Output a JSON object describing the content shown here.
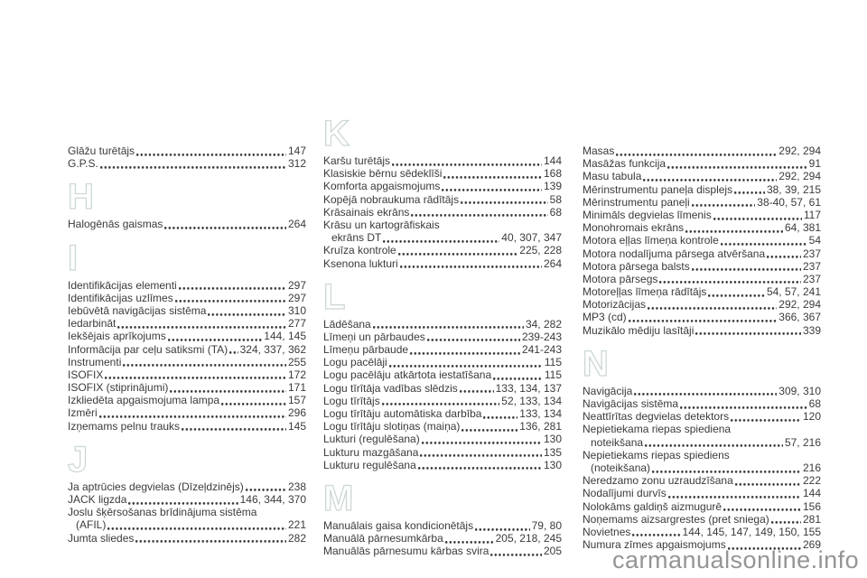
{
  "colors": {
    "background": "#ffffff",
    "text": "#3a3a3a",
    "section_letter_outline": "#ccd8d5",
    "watermark": "#959595"
  },
  "watermark": {
    "text": "carmanualsonline.info"
  },
  "index": {
    "columns": [
      {
        "blocks": [
          {
            "entries": [
              {
                "label": "Glāžu turētājs",
                "pages": "147"
              },
              {
                "label": "G.P.S.",
                "pages": "312"
              }
            ]
          },
          {
            "letter": "H"
          },
          {
            "entries": [
              {
                "label": "Halogēnās gaismas",
                "pages": "264"
              }
            ]
          },
          {
            "letter": "I"
          },
          {
            "entries": [
              {
                "label": "Identifikācijas elementi",
                "pages": "297"
              },
              {
                "label": "Identifikācijas uzlīmes",
                "pages": "297"
              },
              {
                "label": "Iebūvētā navigācijas sistēma",
                "pages": "310"
              },
              {
                "label": "Iedarbināt",
                "pages": "277"
              },
              {
                "label": "Iekšējais aprīkojums",
                "pages": "144, 145"
              },
              {
                "label": "Informācija par ceļu satiksmi (TA)",
                "pages": "324, 337, 362"
              },
              {
                "label": "Instrumenti",
                "pages": "255"
              },
              {
                "label": "ISOFIX",
                "pages": "172"
              },
              {
                "label": "ISOFIX (stiprinājumi)",
                "pages": "171"
              },
              {
                "label": "Izkliedēta apgaismojuma lampa",
                "pages": "157"
              },
              {
                "label": "Izmēri",
                "pages": "296"
              },
              {
                "label": "Izņemams pelnu trauks",
                "pages": "145"
              }
            ]
          },
          {
            "letter": "J"
          },
          {
            "entries": [
              {
                "label": "Ja aptrūcies degvielas (Dīzeļdzinējs)",
                "pages": "238"
              },
              {
                "label": "JACK ligzda",
                "pages": "146, 344, 370"
              },
              {
                "label": "Joslu šķērsošanas brīdinājuma sistēma",
                "pages": null
              },
              {
                "label": "(AFIL)",
                "pages": "221",
                "cont": true
              },
              {
                "label": "Jumta sliedes",
                "pages": "282"
              }
            ]
          }
        ]
      },
      {
        "blocks": [
          {
            "letter": "K"
          },
          {
            "entries": [
              {
                "label": "Karšu turētājs",
                "pages": "144"
              },
              {
                "label": "Klasiskie bērnu sēdeklīši",
                "pages": "168"
              },
              {
                "label": "Komforta apgaismojums",
                "pages": "139"
              },
              {
                "label": "Kopējā nobraukuma rādītājs",
                "pages": "58"
              },
              {
                "label": "Krāsainais ekrāns",
                "pages": "68"
              },
              {
                "label": "Krāsu un kartogrāfiskais",
                "pages": null
              },
              {
                "label": "ekrāns DT",
                "pages": "40, 307, 347",
                "cont": true
              },
              {
                "label": "Kruīza kontrole",
                "pages": "225, 228"
              },
              {
                "label": "Ksenona lukturi",
                "pages": "264"
              }
            ]
          },
          {
            "letter": "L"
          },
          {
            "entries": [
              {
                "label": "Lādēšana",
                "pages": "34, 282"
              },
              {
                "label": "Līmeņi un pārbaudes",
                "pages": "239-243"
              },
              {
                "label": "Līmeņu pārbaude",
                "pages": "241-243"
              },
              {
                "label": "Logu pacēlāji",
                "pages": "115"
              },
              {
                "label": "Logu pacēlāju atkārtota iestatīšana",
                "pages": "115"
              },
              {
                "label": "Logu tīrītāja vadības slēdzis",
                "pages": "133, 134, 137"
              },
              {
                "label": "Logu tīrītājs",
                "pages": "52, 133, 134"
              },
              {
                "label": "Logu tīrītāju automātiska darbība",
                "pages": "133, 134"
              },
              {
                "label": "Logu tīrītāju slotiņas (maiņa)",
                "pages": "136, 281"
              },
              {
                "label": "Lukturi (regulēšana)",
                "pages": "130"
              },
              {
                "label": "Lukturu mazgāšana",
                "pages": "135"
              },
              {
                "label": "Lukturu regulēšana",
                "pages": "130"
              }
            ]
          },
          {
            "letter": "M"
          },
          {
            "entries": [
              {
                "label": "Manuālais gaisa kondicionētājs",
                "pages": "79, 80"
              },
              {
                "label": "Manuālā pārnesumkārba",
                "pages": "205, 218, 245"
              },
              {
                "label": "Manuālās pārnesumu kārbas svira",
                "pages": "205"
              }
            ]
          }
        ]
      },
      {
        "blocks": [
          {
            "entries": [
              {
                "label": "Masas",
                "pages": "292, 294"
              },
              {
                "label": "Masāžas funkcija",
                "pages": "91"
              },
              {
                "label": "Masu tabula",
                "pages": "292, 294"
              },
              {
                "label": "Mērinstrumentu paneļa displejs",
                "pages": "38, 39, 215"
              },
              {
                "label": "Mērinstrumentu paneļi",
                "pages": "38-40, 57, 61"
              },
              {
                "label": "Minimāls degvielas līmenis",
                "pages": "117"
              },
              {
                "label": "Monohromais ekrāns",
                "pages": "64, 381"
              },
              {
                "label": "Motora eļļas līmeņa kontrole",
                "pages": "54"
              },
              {
                "label": "Motora nodalījuma pārsega atvēršana",
                "pages": "237"
              },
              {
                "label": "Motora pārsega balsts",
                "pages": "237"
              },
              {
                "label": "Motora pārsegs",
                "pages": "237"
              },
              {
                "label": "Motoreļļas līmeņa rādītājs",
                "pages": "54, 57, 241"
              },
              {
                "label": "Motorizācijas",
                "pages": "292, 294"
              },
              {
                "label": "MP3 (cd)",
                "pages": "366, 367"
              },
              {
                "label": "Muzikālo mēdiju lasītāji",
                "pages": "339"
              }
            ]
          },
          {
            "letter": "N"
          },
          {
            "entries": [
              {
                "label": "Navigācija",
                "pages": "309, 310"
              },
              {
                "label": "Navigācijas sistēma",
                "pages": "68"
              },
              {
                "label": "Neattīrītas degvielas detektors",
                "pages": "120"
              },
              {
                "label": "Nepietiekama riepas spiediena",
                "pages": null
              },
              {
                "label": "noteikšana",
                "pages": "57, 216",
                "cont": true
              },
              {
                "label": "Nepietiekams riepas spiediens",
                "pages": null
              },
              {
                "label": "(noteikšana)",
                "pages": "216",
                "cont": true
              },
              {
                "label": "Neredzamo zonu uzraudzīšana",
                "pages": "222"
              },
              {
                "label": "Nodalījumi durvīs",
                "pages": "144"
              },
              {
                "label": "Nolokāms galdiņš aizmugurē",
                "pages": "156"
              },
              {
                "label": "Noņemams aizsargrestes (pret sniega)",
                "pages": "281"
              },
              {
                "label": "Novietnes",
                "pages": "144, 145, 147, 149, 150, 155"
              },
              {
                "label": "Numura zīmes apgaismojums",
                "pages": "269"
              }
            ]
          }
        ]
      }
    ]
  }
}
